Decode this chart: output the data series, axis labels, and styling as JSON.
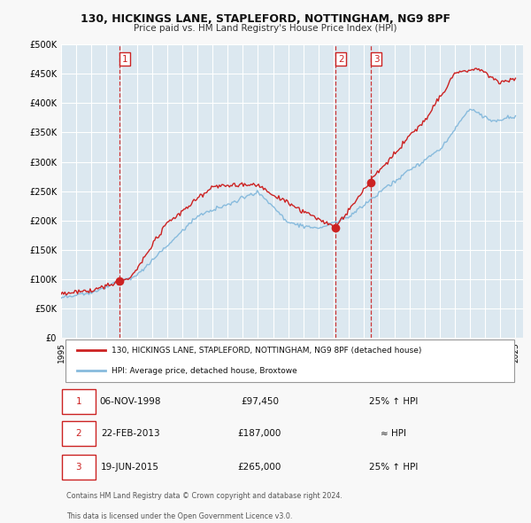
{
  "title": "130, HICKINGS LANE, STAPLEFORD, NOTTINGHAM, NG9 8PF",
  "subtitle": "Price paid vs. HM Land Registry's House Price Index (HPI)",
  "plot_bg_color": "#dce8f0",
  "grid_color": "#ffffff",
  "red_color": "#cc2222",
  "blue_color": "#88bbdd",
  "ylim": [
    0,
    500000
  ],
  "yticks": [
    0,
    50000,
    100000,
    150000,
    200000,
    250000,
    300000,
    350000,
    400000,
    450000,
    500000
  ],
  "xlim_start": 1995.0,
  "xlim_end": 2025.5,
  "transactions": [
    {
      "num": 1,
      "date_str": "06-NOV-1998",
      "year": 1998.85,
      "price": 97450,
      "note": "25% ↑ HPI"
    },
    {
      "num": 2,
      "date_str": "22-FEB-2013",
      "year": 2013.13,
      "price": 187000,
      "note": "≈ HPI"
    },
    {
      "num": 3,
      "date_str": "19-JUN-2015",
      "year": 2015.46,
      "price": 265000,
      "note": "25% ↑ HPI"
    }
  ],
  "vline_color": "#cc2222",
  "legend_line1": "130, HICKINGS LANE, STAPLEFORD, NOTTINGHAM, NG9 8PF (detached house)",
  "legend_line2": "HPI: Average price, detached house, Broxtowe",
  "footer1": "Contains HM Land Registry data © Crown copyright and database right 2024.",
  "footer2": "This data is licensed under the Open Government Licence v3.0.",
  "transaction_box_color": "#cc2222"
}
